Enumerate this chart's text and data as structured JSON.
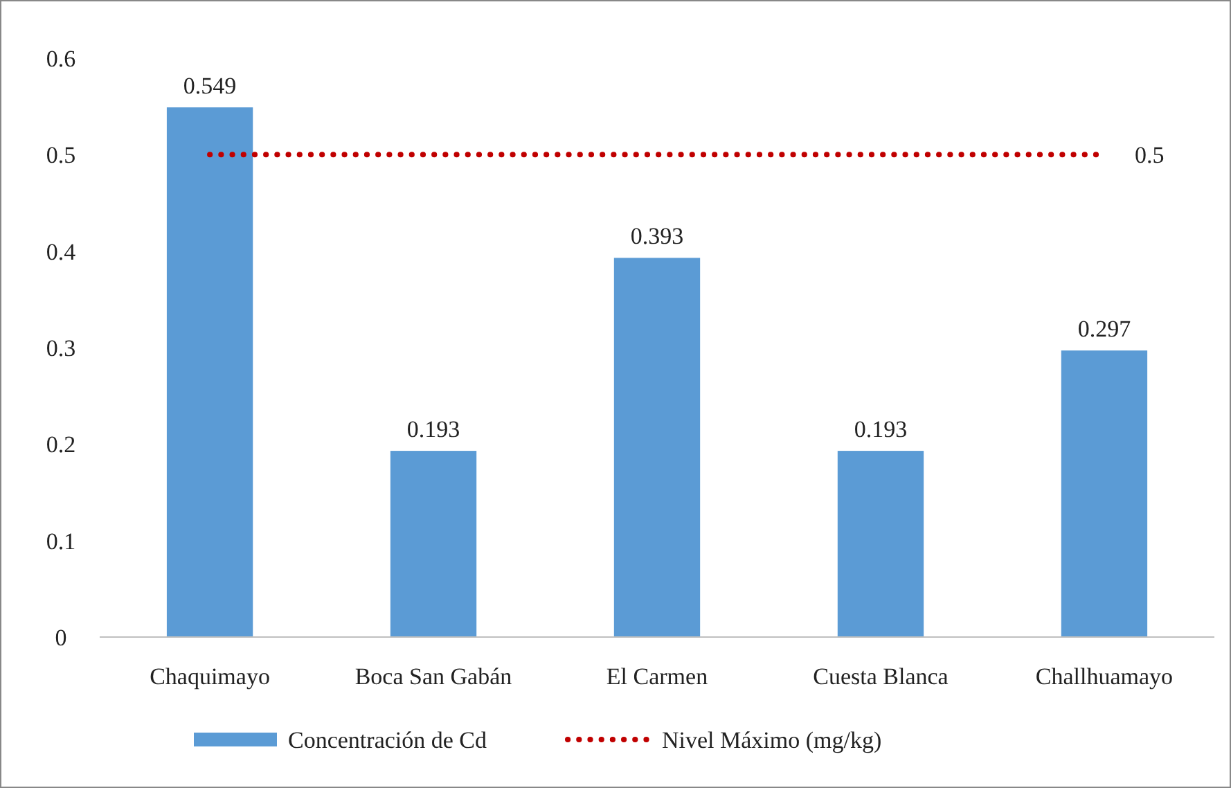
{
  "chart_data": {
    "type": "bar",
    "categories": [
      "Chaquimayo",
      "Boca San Gabán",
      "El Carmen",
      "Cuesta Blanca",
      "Challhuamayo"
    ],
    "series": [
      {
        "name": "Concentración de Cd",
        "color": "#5b9bd5",
        "values": [
          0.549,
          0.193,
          0.393,
          0.193,
          0.297
        ],
        "value_labels": [
          "0.549",
          "0.193",
          "0.393",
          "0.193",
          "0.297"
        ]
      },
      {
        "name": "Nivel Máximo (mg/kg)",
        "type": "line",
        "color": "#c00000",
        "line_style": "dotted",
        "values": [
          0.5,
          0.5,
          0.5,
          0.5,
          0.5
        ],
        "value_labels": [
          null,
          null,
          null,
          null,
          "0.5"
        ]
      }
    ],
    "ylim": [
      0,
      0.6
    ],
    "yticks": [
      0,
      0.1,
      0.2,
      0.3,
      0.4,
      0.5,
      0.6
    ],
    "grid": false,
    "legend": "bottom"
  }
}
